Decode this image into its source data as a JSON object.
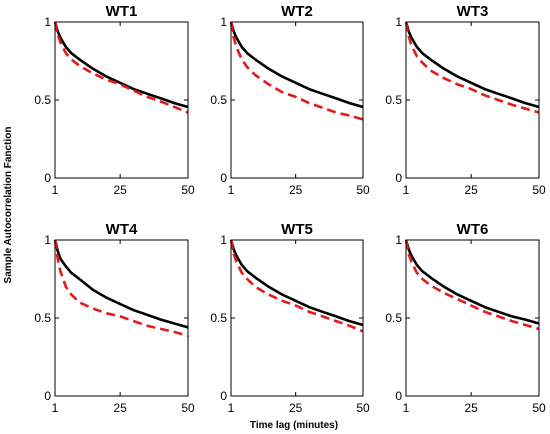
{
  "figure": {
    "ylabel": "Sample Autocorrelation Fanction",
    "xlabel": "Time lag (minutes)"
  },
  "chart_data": [
    {
      "type": "line",
      "title": "WT1",
      "xlim": [
        1,
        50
      ],
      "ylim": [
        0,
        1
      ],
      "xticks": [
        "1",
        "25",
        "50"
      ],
      "yticks": [
        "0",
        "0.5",
        "1"
      ],
      "grid": false,
      "x": [
        1,
        2,
        3,
        5,
        7,
        10,
        15,
        20,
        25,
        30,
        35,
        40,
        45,
        50
      ],
      "series": [
        {
          "style": "solid",
          "color": "#000000",
          "values": [
            1.0,
            0.94,
            0.9,
            0.84,
            0.8,
            0.76,
            0.7,
            0.65,
            0.61,
            0.57,
            0.54,
            0.51,
            0.48,
            0.455
          ]
        },
        {
          "style": "dashed",
          "color": "#e41a1c",
          "values": [
            1.0,
            0.92,
            0.87,
            0.8,
            0.76,
            0.72,
            0.67,
            0.63,
            0.6,
            0.56,
            0.52,
            0.49,
            0.455,
            0.42
          ]
        }
      ]
    },
    {
      "type": "line",
      "title": "WT2",
      "xlim": [
        1,
        50
      ],
      "ylim": [
        0,
        1
      ],
      "xticks": [
        "1",
        "25",
        "50"
      ],
      "yticks": [
        "0",
        "0.5",
        "1"
      ],
      "grid": false,
      "x": [
        1,
        2,
        3,
        5,
        7,
        10,
        15,
        20,
        25,
        30,
        35,
        40,
        45,
        50
      ],
      "series": [
        {
          "style": "solid",
          "color": "#000000",
          "values": [
            1.0,
            0.94,
            0.9,
            0.84,
            0.8,
            0.76,
            0.7,
            0.65,
            0.61,
            0.57,
            0.54,
            0.51,
            0.48,
            0.455
          ]
        },
        {
          "style": "dashed",
          "color": "#e41a1c",
          "values": [
            1.0,
            0.9,
            0.84,
            0.76,
            0.71,
            0.66,
            0.6,
            0.55,
            0.52,
            0.48,
            0.45,
            0.42,
            0.4,
            0.375
          ]
        }
      ]
    },
    {
      "type": "line",
      "title": "WT3",
      "xlim": [
        1,
        50
      ],
      "ylim": [
        0,
        1
      ],
      "xticks": [
        "1",
        "25",
        "50"
      ],
      "yticks": [
        "0",
        "0.5",
        "1"
      ],
      "grid": false,
      "x": [
        1,
        2,
        3,
        5,
        7,
        10,
        15,
        20,
        25,
        30,
        35,
        40,
        45,
        50
      ],
      "series": [
        {
          "style": "solid",
          "color": "#000000",
          "values": [
            1.0,
            0.94,
            0.9,
            0.84,
            0.8,
            0.76,
            0.7,
            0.65,
            0.61,
            0.57,
            0.54,
            0.51,
            0.48,
            0.455
          ]
        },
        {
          "style": "dashed",
          "color": "#e41a1c",
          "values": [
            1.0,
            0.91,
            0.85,
            0.78,
            0.74,
            0.69,
            0.64,
            0.6,
            0.57,
            0.53,
            0.5,
            0.47,
            0.445,
            0.42
          ]
        }
      ]
    },
    {
      "type": "line",
      "title": "WT4",
      "xlim": [
        1,
        50
      ],
      "ylim": [
        0,
        1
      ],
      "xticks": [
        "1",
        "25",
        "50"
      ],
      "yticks": [
        "0",
        "0.5",
        "1"
      ],
      "grid": false,
      "x": [
        1,
        2,
        3,
        5,
        7,
        10,
        15,
        20,
        25,
        30,
        35,
        40,
        45,
        50
      ],
      "series": [
        {
          "style": "solid",
          "color": "#000000",
          "values": [
            1.0,
            0.93,
            0.88,
            0.83,
            0.79,
            0.75,
            0.68,
            0.63,
            0.59,
            0.55,
            0.52,
            0.49,
            0.465,
            0.44
          ]
        },
        {
          "style": "dashed",
          "color": "#e41a1c",
          "values": [
            1.0,
            0.88,
            0.8,
            0.7,
            0.65,
            0.6,
            0.56,
            0.53,
            0.51,
            0.48,
            0.45,
            0.43,
            0.41,
            0.385
          ]
        }
      ]
    },
    {
      "type": "line",
      "title": "WT5",
      "xlim": [
        1,
        50
      ],
      "ylim": [
        0,
        1
      ],
      "xticks": [
        "1",
        "25",
        "50"
      ],
      "yticks": [
        "0",
        "0.5",
        "1"
      ],
      "grid": false,
      "x": [
        1,
        2,
        3,
        5,
        7,
        10,
        15,
        20,
        25,
        30,
        35,
        40,
        45,
        50
      ],
      "series": [
        {
          "style": "solid",
          "color": "#000000",
          "values": [
            1.0,
            0.94,
            0.9,
            0.84,
            0.8,
            0.76,
            0.7,
            0.65,
            0.61,
            0.57,
            0.54,
            0.51,
            0.48,
            0.455
          ]
        },
        {
          "style": "dashed",
          "color": "#e41a1c",
          "values": [
            1.0,
            0.91,
            0.86,
            0.79,
            0.75,
            0.7,
            0.65,
            0.61,
            0.58,
            0.54,
            0.51,
            0.48,
            0.45,
            0.415
          ]
        }
      ]
    },
    {
      "type": "line",
      "title": "WT6",
      "xlim": [
        1,
        50
      ],
      "ylim": [
        0,
        1
      ],
      "xticks": [
        "1",
        "25",
        "50"
      ],
      "yticks": [
        "0",
        "0.5",
        "1"
      ],
      "grid": false,
      "x": [
        1,
        2,
        3,
        5,
        7,
        10,
        15,
        20,
        25,
        30,
        35,
        40,
        45,
        50
      ],
      "series": [
        {
          "style": "solid",
          "color": "#000000",
          "values": [
            1.0,
            0.94,
            0.9,
            0.84,
            0.8,
            0.76,
            0.7,
            0.65,
            0.61,
            0.57,
            0.54,
            0.51,
            0.49,
            0.465
          ]
        },
        {
          "style": "dashed",
          "color": "#e41a1c",
          "values": [
            1.0,
            0.91,
            0.86,
            0.79,
            0.75,
            0.71,
            0.66,
            0.62,
            0.58,
            0.54,
            0.51,
            0.48,
            0.455,
            0.43
          ]
        }
      ]
    }
  ]
}
